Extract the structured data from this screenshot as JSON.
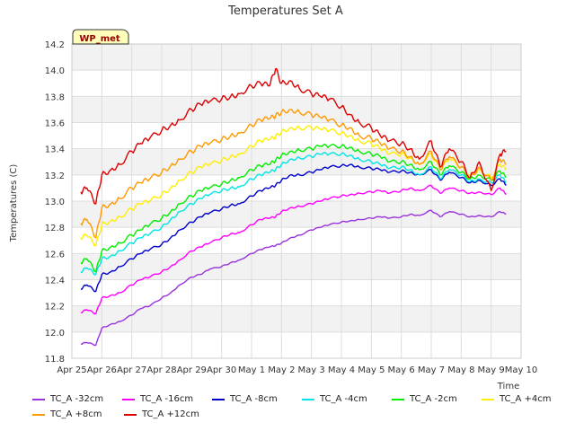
{
  "chart_data": {
    "type": "line",
    "title": "Temperatures Set A",
    "xlabel": "Time",
    "ylabel": "Temperatures (C)",
    "ylim": [
      11.8,
      14.2
    ],
    "yticks": [
      11.8,
      12.0,
      12.2,
      12.4,
      12.6,
      12.8,
      13.0,
      13.2,
      13.4,
      13.6,
      13.8,
      14.0,
      14.2
    ],
    "x_tick_labels": [
      "Apr 25",
      "Apr 26",
      "Apr 27",
      "Apr 28",
      "Apr 29",
      "Apr 30",
      "May 1",
      "May 2",
      "May 3",
      "May 4",
      "May 5",
      "May 6",
      "May 7",
      "May 8",
      "May 9",
      "May 10"
    ],
    "xlim_days": [
      0,
      15
    ],
    "grid": true,
    "station_label": "WP_met",
    "series": [
      {
        "name": "TC_A -32cm",
        "color": "#9933dd",
        "x": [
          0.3,
          0.5,
          0.8,
          1,
          1.3,
          1.6,
          2,
          2.3,
          2.6,
          3,
          3.3,
          3.6,
          4,
          4.3,
          4.6,
          5,
          5.3,
          5.6,
          6,
          6.3,
          6.6,
          6.8,
          7,
          7.3,
          7.6,
          8,
          8.3,
          8.6,
          9,
          9.3,
          9.6,
          10,
          10.3,
          10.6,
          11,
          11.3,
          11.6,
          12,
          12.3,
          12.6,
          13,
          13.3,
          13.6,
          14,
          14.3,
          14.5
        ],
        "y": [
          11.91,
          11.92,
          11.9,
          12.03,
          12.06,
          12.08,
          12.13,
          12.18,
          12.2,
          12.26,
          12.3,
          12.36,
          12.42,
          12.44,
          12.48,
          12.5,
          12.53,
          12.55,
          12.6,
          12.63,
          12.65,
          12.66,
          12.68,
          12.72,
          12.74,
          12.78,
          12.8,
          12.82,
          12.84,
          12.85,
          12.86,
          12.87,
          12.88,
          12.87,
          12.88,
          12.9,
          12.89,
          12.93,
          12.88,
          12.92,
          12.9,
          12.88,
          12.89,
          12.88,
          12.92,
          12.9
        ]
      },
      {
        "name": "TC_A -16cm",
        "color": "#ff00ff",
        "x": [
          0.3,
          0.5,
          0.8,
          1,
          1.3,
          1.6,
          2,
          2.3,
          2.6,
          3,
          3.3,
          3.6,
          4,
          4.3,
          4.6,
          5,
          5.3,
          5.6,
          6,
          6.3,
          6.6,
          6.8,
          7,
          7.3,
          7.6,
          8,
          8.3,
          8.6,
          9,
          9.3,
          9.6,
          10,
          10.3,
          10.6,
          11,
          11.3,
          11.6,
          12,
          12.3,
          12.6,
          13,
          13.3,
          13.6,
          14,
          14.3,
          14.5
        ],
        "y": [
          12.15,
          12.17,
          12.14,
          12.26,
          12.28,
          12.3,
          12.36,
          12.4,
          12.42,
          12.46,
          12.5,
          12.55,
          12.62,
          12.65,
          12.68,
          12.72,
          12.75,
          12.76,
          12.82,
          12.86,
          12.87,
          12.88,
          12.92,
          12.95,
          12.96,
          12.98,
          13.0,
          13.02,
          13.04,
          13.05,
          13.06,
          13.07,
          13.08,
          13.06,
          13.08,
          13.1,
          13.08,
          13.12,
          13.06,
          13.1,
          13.08,
          13.06,
          13.07,
          13.05,
          13.1,
          13.05
        ]
      },
      {
        "name": "TC_A -8cm",
        "color": "#0000cc",
        "x": [
          0.3,
          0.5,
          0.8,
          1,
          1.3,
          1.6,
          2,
          2.3,
          2.6,
          3,
          3.3,
          3.6,
          4,
          4.3,
          4.6,
          5,
          5.3,
          5.6,
          6,
          6.3,
          6.6,
          6.8,
          7,
          7.3,
          7.6,
          8,
          8.3,
          8.6,
          9,
          9.3,
          9.6,
          10,
          10.3,
          10.6,
          11,
          11.3,
          11.6,
          12,
          12.3,
          12.6,
          13,
          13.3,
          13.6,
          14,
          14.3,
          14.5
        ],
        "y": [
          12.33,
          12.36,
          12.31,
          12.44,
          12.46,
          12.5,
          12.56,
          12.6,
          12.63,
          12.67,
          12.72,
          12.78,
          12.84,
          12.88,
          12.91,
          12.94,
          12.97,
          12.98,
          13.04,
          13.08,
          13.1,
          13.12,
          13.16,
          13.2,
          13.2,
          13.22,
          13.24,
          13.26,
          13.27,
          13.28,
          13.26,
          13.25,
          13.24,
          13.22,
          13.23,
          13.22,
          13.2,
          13.24,
          13.16,
          13.22,
          13.18,
          13.14,
          13.16,
          13.12,
          13.17,
          13.12
        ]
      },
      {
        "name": "TC_A -4cm",
        "color": "#00e5e5",
        "x": [
          0.3,
          0.5,
          0.8,
          1,
          1.3,
          1.6,
          2,
          2.3,
          2.6,
          3,
          3.3,
          3.6,
          4,
          4.3,
          4.6,
          5,
          5.3,
          5.6,
          6,
          6.3,
          6.6,
          6.8,
          7,
          7.3,
          7.6,
          8,
          8.3,
          8.6,
          9,
          9.3,
          9.6,
          10,
          10.3,
          10.6,
          11,
          11.3,
          11.6,
          12,
          12.3,
          12.6,
          13,
          13.3,
          13.6,
          14,
          14.3,
          14.5
        ],
        "y": [
          12.46,
          12.49,
          12.44,
          12.56,
          12.58,
          12.62,
          12.68,
          12.72,
          12.75,
          12.8,
          12.86,
          12.92,
          12.98,
          13.02,
          13.05,
          13.08,
          13.1,
          13.11,
          13.17,
          13.2,
          13.22,
          13.24,
          13.28,
          13.32,
          13.33,
          13.34,
          13.36,
          13.36,
          13.36,
          13.35,
          13.32,
          13.3,
          13.28,
          13.25,
          13.26,
          13.24,
          13.2,
          13.26,
          13.17,
          13.24,
          13.2,
          13.15,
          13.17,
          13.14,
          13.2,
          13.14
        ]
      },
      {
        "name": "TC_A -2cm",
        "color": "#00ee00",
        "x": [
          0.3,
          0.5,
          0.8,
          1,
          1.3,
          1.6,
          2,
          2.3,
          2.6,
          3,
          3.3,
          3.6,
          4,
          4.3,
          4.6,
          5,
          5.3,
          5.6,
          6,
          6.3,
          6.6,
          6.8,
          7,
          7.3,
          7.6,
          8,
          8.3,
          8.6,
          9,
          9.3,
          9.6,
          10,
          10.3,
          10.6,
          11,
          11.3,
          11.6,
          12,
          12.3,
          12.6,
          13,
          13.3,
          13.6,
          14,
          14.3,
          14.5
        ],
        "y": [
          12.53,
          12.56,
          12.46,
          12.62,
          12.65,
          12.68,
          12.74,
          12.78,
          12.82,
          12.87,
          12.92,
          12.98,
          13.04,
          13.08,
          13.1,
          13.13,
          13.16,
          13.18,
          13.24,
          13.27,
          13.28,
          13.31,
          13.35,
          13.38,
          13.39,
          13.4,
          13.42,
          13.42,
          13.42,
          13.41,
          13.38,
          13.36,
          13.34,
          13.3,
          13.3,
          13.28,
          13.24,
          13.3,
          13.2,
          13.27,
          13.22,
          13.17,
          13.2,
          13.16,
          13.23,
          13.18
        ]
      },
      {
        "name": "TC_A +4cm",
        "color": "#ffee00",
        "x": [
          0.3,
          0.5,
          0.8,
          1,
          1.3,
          1.6,
          2,
          2.3,
          2.6,
          3,
          3.3,
          3.6,
          4,
          4.3,
          4.6,
          5,
          5.3,
          5.6,
          6,
          6.3,
          6.6,
          6.8,
          7,
          7.3,
          7.6,
          8,
          8.3,
          8.6,
          9,
          9.3,
          9.6,
          10,
          10.3,
          10.6,
          11,
          11.3,
          11.6,
          12,
          12.3,
          12.6,
          13,
          13.3,
          13.6,
          14,
          14.3,
          14.5
        ],
        "y": [
          12.72,
          12.74,
          12.66,
          12.82,
          12.85,
          12.88,
          12.94,
          12.98,
          13.0,
          13.05,
          13.1,
          13.16,
          13.22,
          13.26,
          13.28,
          13.31,
          13.34,
          13.36,
          13.42,
          13.46,
          13.47,
          13.49,
          13.53,
          13.56,
          13.56,
          13.56,
          13.55,
          13.54,
          13.52,
          13.5,
          13.46,
          13.44,
          13.4,
          13.36,
          13.36,
          13.33,
          13.28,
          13.36,
          13.24,
          13.32,
          13.26,
          13.2,
          13.24,
          13.18,
          13.28,
          13.24
        ]
      },
      {
        "name": "TC_A +8cm",
        "color": "#ff9900",
        "x": [
          0.3,
          0.5,
          0.8,
          1,
          1.3,
          1.6,
          2,
          2.3,
          2.6,
          3,
          3.3,
          3.6,
          4,
          4.3,
          4.6,
          5,
          5.3,
          5.6,
          6,
          6.3,
          6.6,
          6.8,
          7,
          7.3,
          7.6,
          8,
          8.3,
          8.6,
          9,
          9.3,
          9.6,
          10,
          10.3,
          10.6,
          11,
          11.3,
          11.6,
          12,
          12.3,
          12.6,
          13,
          13.3,
          13.6,
          14,
          14.3,
          14.5
        ],
        "y": [
          12.83,
          12.86,
          12.72,
          12.95,
          12.98,
          13.02,
          13.1,
          13.14,
          13.17,
          13.22,
          13.27,
          13.32,
          13.38,
          13.42,
          13.44,
          13.47,
          13.5,
          13.52,
          13.58,
          13.62,
          13.63,
          13.65,
          13.68,
          13.7,
          13.68,
          13.66,
          13.64,
          13.62,
          13.58,
          13.56,
          13.5,
          13.48,
          13.44,
          13.4,
          13.38,
          13.34,
          13.28,
          13.38,
          13.24,
          13.34,
          13.26,
          13.18,
          13.26,
          13.16,
          13.32,
          13.28
        ]
      },
      {
        "name": "TC_A +12cm",
        "color": "#dd0000",
        "x": [
          0.3,
          0.5,
          0.8,
          1,
          1.3,
          1.6,
          2,
          2.3,
          2.6,
          3,
          3.3,
          3.6,
          4,
          4.3,
          4.6,
          5,
          5.3,
          5.6,
          6,
          6.3,
          6.6,
          6.8,
          7,
          7.3,
          7.6,
          8,
          8.3,
          8.6,
          9,
          9.3,
          9.6,
          10,
          10.3,
          10.6,
          11,
          11.3,
          11.6,
          12,
          12.3,
          12.6,
          13,
          13.3,
          13.6,
          14,
          14.3,
          14.5
        ],
        "y": [
          13.07,
          13.1,
          12.98,
          13.2,
          13.24,
          13.28,
          13.38,
          13.44,
          13.48,
          13.54,
          13.58,
          13.62,
          13.7,
          13.74,
          13.76,
          13.78,
          13.8,
          13.82,
          13.88,
          13.9,
          13.88,
          14.01,
          13.9,
          13.92,
          13.86,
          13.82,
          13.8,
          13.78,
          13.72,
          13.66,
          13.6,
          13.56,
          13.5,
          13.46,
          13.44,
          13.4,
          13.32,
          13.46,
          13.26,
          13.4,
          13.3,
          13.18,
          13.3,
          13.08,
          13.36,
          13.38
        ]
      }
    ]
  }
}
